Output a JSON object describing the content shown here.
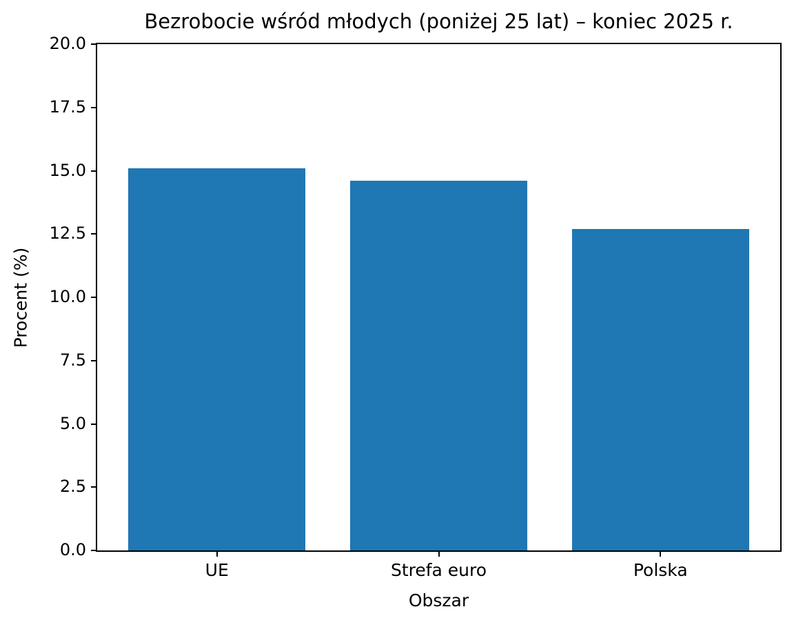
{
  "chart_data": {
    "type": "bar",
    "title": "Bezrobocie wśród młodych (poniżej 25 lat) – koniec 2025 r.",
    "xlabel": "Obszar",
    "ylabel": "Procent (%)",
    "categories": [
      "UE",
      "Strefa euro",
      "Polska"
    ],
    "values": [
      15.1,
      14.6,
      12.7
    ],
    "ylim": [
      0,
      20
    ],
    "y_tick_labels": [
      "0.0",
      "2.5",
      "5.0",
      "7.5",
      "10.0",
      "12.5",
      "15.0",
      "17.5",
      "20.0"
    ],
    "bar_color": "#1f77b4",
    "spine_color": "#000000",
    "background_color": "#ffffff",
    "grid": false,
    "legend_position": "none"
  }
}
